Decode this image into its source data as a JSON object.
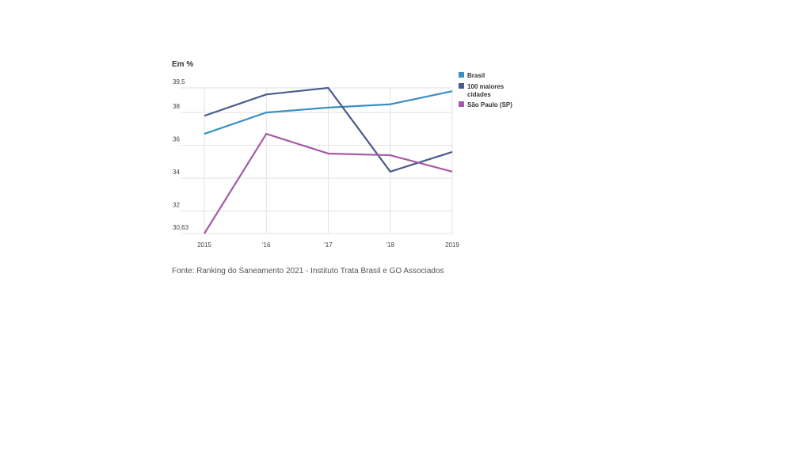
{
  "chart_data": {
    "type": "line",
    "ylabel": "Em %",
    "x": [
      "2015",
      "'16",
      "'17",
      "'18",
      "2019"
    ],
    "y_ticks": [
      "39,5",
      "38",
      "36",
      "34",
      "32",
      "30,63"
    ],
    "y_tick_values": [
      39.5,
      38,
      36,
      34,
      32,
      30.63
    ],
    "ylim": [
      30.63,
      39.5
    ],
    "grid": true,
    "legend_position": "right",
    "series": [
      {
        "name": "Brasil",
        "color": "#3a8fc4",
        "values": [
          36.7,
          38.0,
          38.3,
          38.5,
          39.3
        ]
      },
      {
        "name": "100 maiores cidades",
        "color": "#4a5a8c",
        "values": [
          37.8,
          39.1,
          39.5,
          34.4,
          35.6
        ]
      },
      {
        "name": "São Paulo (SP)",
        "color": "#a55aa6",
        "values": [
          30.63,
          36.7,
          35.5,
          35.4,
          34.4
        ]
      }
    ],
    "source": "Fonte: Ranking do Saneamento 2021 - Instituto Trata Brasil e GO Associados"
  }
}
